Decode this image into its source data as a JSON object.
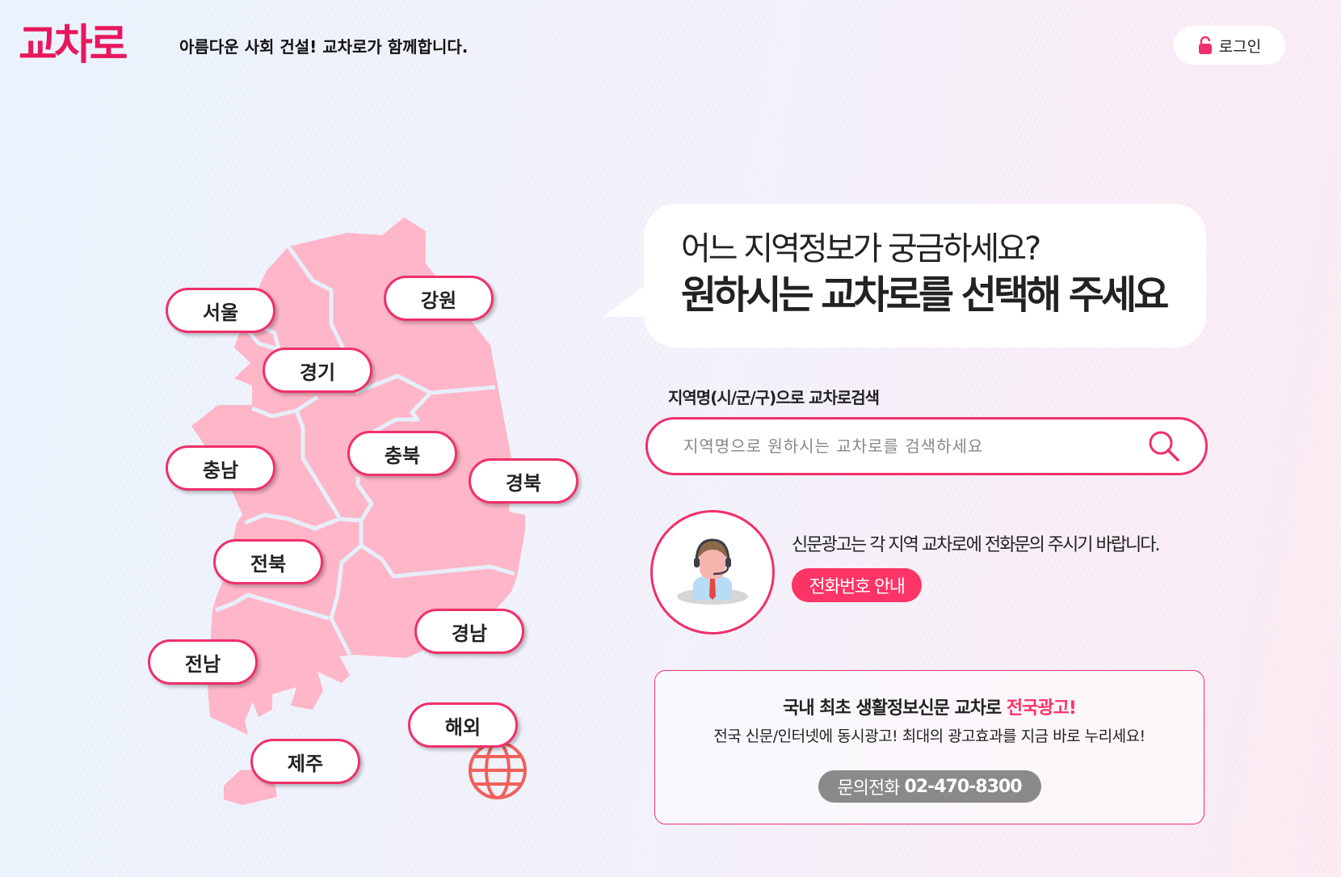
{
  "header": {
    "logo": "교차로",
    "tagline": "아름다운 사회 건설! 교차로가 함께합니다.",
    "login_label": "로그인",
    "login_icon": "lock-icon"
  },
  "bubble": {
    "line1": "어느 지역정보가 궁금하세요?",
    "line2": "원하시는 교차로를 선택해 주세요"
  },
  "search": {
    "label": "지역명(시/군/구)으로 교차로검색",
    "placeholder": "지역명으로 원하시는 교차로를 검색하세요",
    "value": "",
    "icon": "search-icon"
  },
  "contact": {
    "notice": "신문광고는 각 지역 교차로에 전화문의 주시기 바랍니다.",
    "button": "전화번호 안내",
    "icon": "customer-service-agent-icon"
  },
  "ad": {
    "title": "국내 최초 생활정보신문 교차로 ",
    "title_highlight": "전국광고!",
    "subtitle": "전국 신문/인터넷에 동시광고! 최대의 광고효과를 지금 바로 누리세요!",
    "phone_label": "문의전화",
    "phone_number": "02-470-8300"
  },
  "regions": [
    "서울",
    "강원",
    "경기",
    "충남",
    "충북",
    "경북",
    "전북",
    "경남",
    "전남",
    "해외",
    "제주"
  ],
  "colors": {
    "accent": "#f0306a",
    "button": "#fe3366",
    "map": "#ffb6c8",
    "logo": "#e8175d",
    "globe": "#f0605a"
  }
}
